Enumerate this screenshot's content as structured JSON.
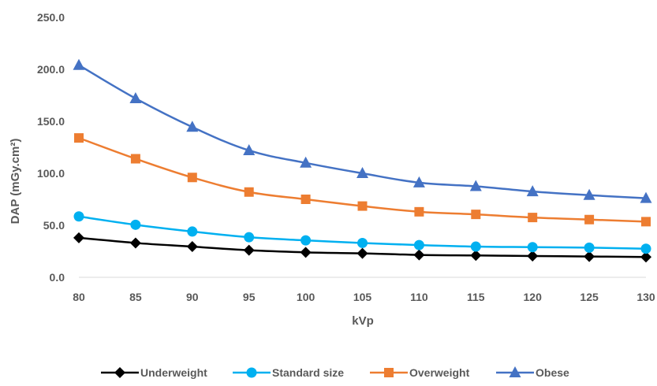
{
  "chart_data": {
    "type": "line",
    "title": "",
    "xlabel": "kVp",
    "ylabel": "DAP (mGy.cm²)",
    "categories": [
      "80",
      "85",
      "90",
      "95",
      "100",
      "105",
      "110",
      "115",
      "120",
      "125",
      "130"
    ],
    "x": [
      80,
      85,
      90,
      95,
      100,
      105,
      110,
      115,
      120,
      125,
      130
    ],
    "ylim": [
      0,
      250
    ],
    "yticks": [
      "0.0",
      "50.0",
      "100.0",
      "150.0",
      "200.0",
      "250.0"
    ],
    "yticks_values": [
      0,
      50,
      100,
      150,
      200,
      250
    ],
    "grid": false,
    "legend": "bottom",
    "series": [
      {
        "name": "Underweight",
        "color": "#000000",
        "marker": "diamond",
        "values": [
          38,
          33,
          29.5,
          26,
          24,
          23,
          21.5,
          21,
          20.5,
          20,
          19.5
        ]
      },
      {
        "name": "Standard size",
        "color": "#00b0f0",
        "marker": "circle",
        "values": [
          58.5,
          50.5,
          44,
          38.5,
          35.5,
          33,
          31,
          29.5,
          29,
          28.5,
          27.5
        ]
      },
      {
        "name": "Overweight",
        "color": "#ed7d31",
        "marker": "square",
        "values": [
          134,
          114,
          96,
          82,
          75,
          68.5,
          63,
          60.5,
          57.5,
          55.5,
          53.5
        ]
      },
      {
        "name": "Obese",
        "color": "#4472c4",
        "marker": "triangle",
        "values": [
          204,
          172,
          144.5,
          122,
          110,
          100,
          91,
          87.5,
          82.5,
          79,
          76
        ]
      }
    ]
  }
}
